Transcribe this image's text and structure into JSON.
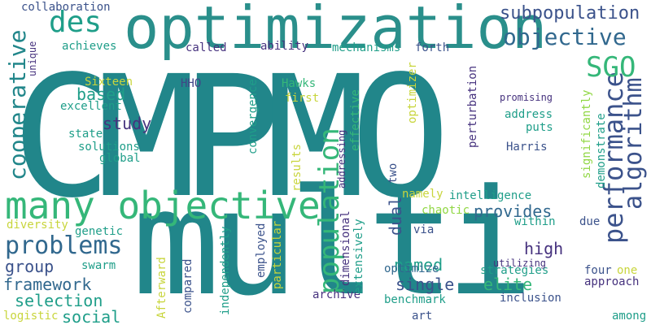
{
  "words": {
    "cmpmo": "CMPMO",
    "multi": "multi",
    "optimization": "optimization",
    "many_objective": "many objective",
    "population": "population",
    "performance": "performance",
    "algorithm": "algorithm",
    "problems": "problems",
    "cooperative": "cooperative",
    "objective": "objective",
    "sgo": "SGO",
    "des": "des",
    "subpopulation": "subpopulation",
    "collaboration": "collaboration",
    "unique": "unique",
    "achieves": "achieves",
    "called": "called",
    "ability": "ability",
    "mechanisms": "mechanisms",
    "forth": "forth",
    "based": "based",
    "sixteen": "Sixteen",
    "excellent": "excellent",
    "study": "study",
    "state": "state",
    "solutions": "solutions",
    "global": "global",
    "hho": "HHO",
    "convergence": "convergence",
    "hawks": "Hawks",
    "first": "first",
    "effective": "effective",
    "optimizer": "optimizer",
    "perturbation": "perturbation",
    "promising": "promising",
    "address": "address",
    "puts": "puts",
    "harris": "Harris",
    "significantly": "significantly",
    "demonstrate": "demonstrate",
    "results": "results",
    "addressing": "addressing",
    "two": "two",
    "namely": "namely",
    "intelligence": "intelligence",
    "chaotic": "chaotic",
    "provides": "provides",
    "within": "within",
    "due": "due",
    "dual": "dual",
    "via": "via",
    "high": "high",
    "diversity": "diversity",
    "genetic": "genetic",
    "group": "group",
    "swarm": "swarm",
    "framework": "framework",
    "selection": "selection",
    "social": "social",
    "logistic": "logistic",
    "afterward": "Afterward",
    "compared": "compared",
    "independently": "independently",
    "employed": "employed",
    "particular": "particular",
    "named": "named",
    "single": "single",
    "elite": "elite",
    "optimize": "optimize",
    "dimensional": "dimensional",
    "extensively": "extensively",
    "archive": "archive",
    "strategies": "strategies",
    "benchmark": "benchmark",
    "inclusion": "inclusion",
    "art": "art",
    "utilizing": "utilizing",
    "four": "four",
    "one": "one",
    "approach": "approach",
    "among": "among"
  },
  "colors": {
    "dark_teal": "#21868a",
    "teal": "#1f9e89",
    "green": "#35b779",
    "navy": "#3b528b",
    "purple": "#46327e",
    "dark_purple": "#440154",
    "yellow": "#c8d53c",
    "lime": "#90d743"
  }
}
